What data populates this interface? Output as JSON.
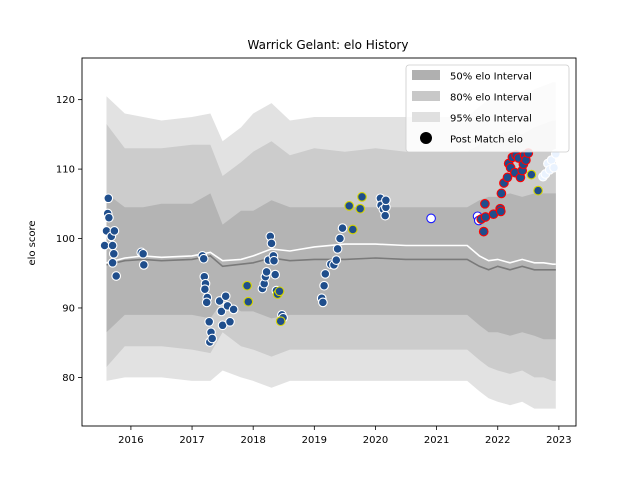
{
  "chart_data": {
    "type": "scatter",
    "title": "Warrick Gelant: elo History",
    "xlabel": "",
    "ylabel": "elo score",
    "xlim": [
      2015.2,
      2023.28
    ],
    "ylim": [
      73.0,
      126.0
    ],
    "x_ticks": [
      2016,
      2017,
      2018,
      2019,
      2020,
      2021,
      2022,
      2023
    ],
    "x_tick_labels": [
      "2016",
      "2017",
      "2018",
      "2019",
      "2020",
      "2021",
      "2022",
      "2023"
    ],
    "y_ticks": [
      80,
      90,
      100,
      110,
      120
    ],
    "y_tick_labels": [
      "80",
      "90",
      "100",
      "110",
      "120"
    ],
    "legend": {
      "position": "top-right",
      "entries": [
        {
          "label": "50% elo Interval",
          "kind": "patch",
          "color": "#b0b0b0"
        },
        {
          "label": "80% elo Interval",
          "kind": "patch",
          "color": "#c8c8c8"
        },
        {
          "label": "95% elo Interval",
          "kind": "patch",
          "color": "#e0e0e0"
        },
        {
          "label": "Post Match elo",
          "kind": "marker",
          "color": "#000000"
        }
      ]
    },
    "bands": {
      "x": [
        2015.6,
        2015.9,
        2016.2,
        2016.5,
        2017.0,
        2017.3,
        2017.5,
        2017.8,
        2018.0,
        2018.3,
        2018.6,
        2019.0,
        2019.5,
        2020.0,
        2020.5,
        2021.0,
        2021.5,
        2021.7,
        2021.85,
        2022.0,
        2022.2,
        2022.4,
        2022.6,
        2022.75,
        2022.9,
        2022.95
      ],
      "p95_upper": [
        120.5,
        118.0,
        117.5,
        117.0,
        117.5,
        118.0,
        114.0,
        116.0,
        118.0,
        119.5,
        117.0,
        117.5,
        117.5,
        117.5,
        117.5,
        117.5,
        117.5,
        119.0,
        120.0,
        120.5,
        121.0,
        120.5,
        121.5,
        122.0,
        122.5,
        122.5
      ],
      "p80_upper": [
        116.5,
        113.0,
        113.0,
        113.0,
        113.5,
        113.5,
        109.0,
        111.0,
        112.5,
        114.0,
        112.0,
        113.0,
        112.5,
        113.0,
        112.5,
        112.5,
        112.5,
        113.5,
        114.5,
        115.0,
        115.5,
        115.0,
        116.0,
        116.5,
        117.0,
        117.0
      ],
      "p50_upper": [
        106.5,
        104.5,
        104.5,
        105.0,
        105.0,
        106.5,
        102.0,
        104.0,
        104.0,
        105.5,
        104.5,
        104.5,
        104.5,
        104.5,
        104.5,
        104.5,
        104.5,
        105.5,
        106.0,
        106.0,
        106.5,
        106.0,
        106.5,
        106.5,
        106.5,
        106.5
      ],
      "p50_lower": [
        86.5,
        89.0,
        89.0,
        89.0,
        89.0,
        88.5,
        91.0,
        89.5,
        89.5,
        88.5,
        89.0,
        89.0,
        89.0,
        89.0,
        89.0,
        89.0,
        89.0,
        87.5,
        86.5,
        86.5,
        86.0,
        86.5,
        86.0,
        85.5,
        85.5,
        85.5
      ],
      "p80_lower": [
        81.5,
        84.5,
        84.5,
        84.5,
        84.0,
        83.5,
        86.5,
        84.5,
        84.0,
        83.0,
        84.0,
        84.0,
        84.0,
        84.0,
        84.0,
        84.0,
        84.0,
        82.5,
        81.5,
        81.0,
        80.5,
        81.0,
        80.0,
        80.0,
        79.5,
        79.5
      ],
      "p95_lower": [
        79.5,
        80.0,
        80.0,
        80.0,
        79.5,
        79.5,
        81.0,
        80.0,
        79.5,
        78.5,
        79.5,
        79.5,
        79.5,
        79.5,
        79.5,
        79.5,
        79.5,
        78.0,
        77.0,
        76.5,
        76.0,
        76.5,
        75.5,
        75.5,
        75.5,
        75.5
      ],
      "median_line": [
        96.2,
        96.8,
        97.0,
        96.8,
        97.0,
        97.5,
        96.0,
        96.3,
        96.5,
        97.2,
        96.8,
        97.0,
        97.0,
        97.2,
        97.0,
        97.0,
        97.0,
        96.0,
        95.5,
        96.0,
        95.5,
        96.0,
        95.5,
        95.5,
        95.5,
        95.5
      ],
      "mean_line": [
        96.5,
        97.2,
        97.5,
        97.3,
        97.5,
        98.0,
        96.8,
        97.0,
        97.5,
        98.5,
        98.2,
        98.8,
        99.2,
        99.2,
        99.0,
        99.0,
        99.0,
        97.5,
        96.8,
        97.0,
        96.5,
        97.0,
        96.5,
        96.5,
        96.3,
        96.3
      ]
    },
    "series": [
      {
        "fill": "#1f4e8c",
        "edge": "#ffffff",
        "points": [
          [
            2015.63,
            105.8
          ],
          [
            2015.62,
            103.6
          ],
          [
            2015.64,
            103.0
          ],
          [
            2015.6,
            101.1
          ],
          [
            2015.68,
            100.3
          ],
          [
            2015.57,
            99.0
          ],
          [
            2015.7,
            99.0
          ],
          [
            2015.73,
            101.1
          ],
          [
            2015.72,
            97.8
          ],
          [
            2015.7,
            96.5
          ],
          [
            2015.76,
            94.6
          ],
          [
            2016.17,
            98.0
          ],
          [
            2016.2,
            97.8
          ],
          [
            2016.21,
            96.2
          ],
          [
            2017.17,
            97.5
          ],
          [
            2017.19,
            97.1
          ],
          [
            2017.2,
            94.5
          ],
          [
            2017.22,
            93.5
          ],
          [
            2017.21,
            92.7
          ],
          [
            2017.25,
            91.5
          ],
          [
            2017.24,
            90.8
          ],
          [
            2017.28,
            88.0
          ],
          [
            2017.31,
            86.5
          ],
          [
            2017.29,
            85.1
          ],
          [
            2017.33,
            85.6
          ],
          [
            2017.45,
            91.0
          ],
          [
            2017.48,
            89.5
          ],
          [
            2017.5,
            87.5
          ],
          [
            2017.55,
            91.7
          ],
          [
            2017.58,
            90.3
          ],
          [
            2017.62,
            88.0
          ],
          [
            2017.68,
            89.8
          ],
          [
            2018.15,
            92.8
          ],
          [
            2018.18,
            93.5
          ],
          [
            2018.2,
            94.5
          ],
          [
            2018.22,
            95.2
          ],
          [
            2018.25,
            96.9
          ],
          [
            2018.28,
            100.3
          ],
          [
            2018.3,
            99.3
          ],
          [
            2018.33,
            97.5
          ],
          [
            2018.34,
            96.8
          ],
          [
            2018.36,
            94.8
          ],
          [
            2018.38,
            92.5
          ],
          [
            2018.47,
            89.0
          ],
          [
            2018.49,
            88.6
          ],
          [
            2019.12,
            91.4
          ],
          [
            2019.14,
            90.8
          ],
          [
            2019.16,
            93.2
          ],
          [
            2019.18,
            94.9
          ],
          [
            2019.27,
            96.3
          ],
          [
            2019.32,
            96.2
          ],
          [
            2019.36,
            96.9
          ],
          [
            2019.38,
            98.5
          ],
          [
            2019.42,
            100.0
          ],
          [
            2019.46,
            101.5
          ],
          [
            2020.08,
            105.8
          ],
          [
            2020.09,
            104.8
          ],
          [
            2020.13,
            104.2
          ],
          [
            2020.16,
            103.3
          ],
          [
            2020.17,
            104.5
          ],
          [
            2020.17,
            105.5
          ]
        ]
      },
      {
        "fill": "#1f4e8c",
        "edge": "#d4d400",
        "points": [
          [
            2017.9,
            93.2
          ],
          [
            2017.92,
            90.9
          ],
          [
            2018.4,
            92.0
          ],
          [
            2018.43,
            92.4
          ],
          [
            2018.45,
            88.1
          ],
          [
            2019.57,
            104.7
          ],
          [
            2019.63,
            101.3
          ],
          [
            2019.75,
            104.3
          ],
          [
            2019.78,
            106.0
          ],
          [
            2022.55,
            109.2
          ],
          [
            2022.66,
            106.9
          ]
        ]
      },
      {
        "fill": "#ffffff",
        "edge": "#1a1aff",
        "points": [
          [
            2020.91,
            102.9
          ],
          [
            2021.67,
            103.2
          ],
          [
            2021.69,
            102.6
          ]
        ]
      },
      {
        "fill": "#1f4e8c",
        "edge": "#ff0000",
        "points": [
          [
            2021.73,
            102.8
          ],
          [
            2021.77,
            101.0
          ],
          [
            2021.79,
            105.0
          ],
          [
            2021.8,
            103.1
          ],
          [
            2021.93,
            103.5
          ],
          [
            2022.04,
            104.3
          ],
          [
            2022.05,
            103.9
          ],
          [
            2022.06,
            106.5
          ],
          [
            2022.1,
            108.0
          ],
          [
            2022.16,
            108.8
          ],
          [
            2022.18,
            110.8
          ],
          [
            2022.21,
            110.2
          ],
          [
            2022.24,
            111.7
          ],
          [
            2022.28,
            109.5
          ],
          [
            2022.3,
            112.0
          ],
          [
            2022.34,
            111.6
          ],
          [
            2022.37,
            108.8
          ],
          [
            2022.4,
            109.8
          ],
          [
            2022.42,
            110.7
          ],
          [
            2022.44,
            112.0
          ],
          [
            2022.46,
            111.3
          ],
          [
            2022.5,
            112.3
          ]
        ]
      },
      {
        "fill": "#eaf3ff",
        "edge": "#ffffff",
        "points": [
          [
            2022.74,
            108.9
          ],
          [
            2022.78,
            109.3
          ],
          [
            2022.82,
            110.8
          ],
          [
            2022.85,
            109.9
          ],
          [
            2022.88,
            111.3
          ],
          [
            2022.92,
            110.2
          ],
          [
            2022.95,
            112.2
          ]
        ]
      }
    ]
  }
}
